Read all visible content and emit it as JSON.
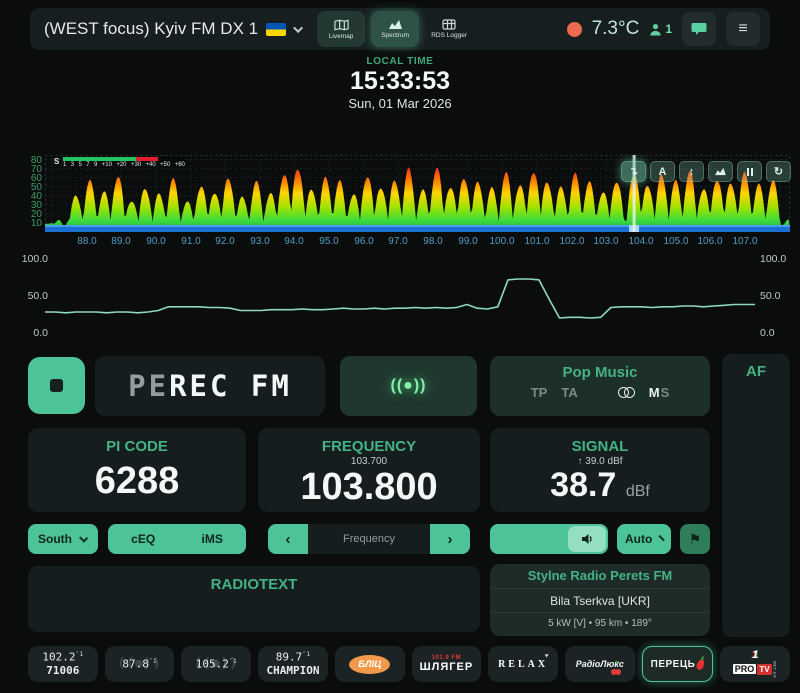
{
  "header": {
    "title": "(WEST focus) Kyiv FM DX 1",
    "nav": [
      {
        "label": "Livemap"
      },
      {
        "label": "Spectrum"
      },
      {
        "label": "RDS Logger"
      }
    ],
    "temperature": "7.3°C",
    "listeners": "1"
  },
  "clock": {
    "label": "LOCAL TIME",
    "time": "15:33:53",
    "date": "Sun, 01 Mar 2026"
  },
  "spectrum": {
    "y_ticks": [
      80,
      70,
      60,
      50,
      40,
      30,
      20,
      10
    ],
    "x_ticks": [
      "88.0",
      "89.0",
      "90.0",
      "91.0",
      "92.0",
      "93.0",
      "94.0",
      "95.0",
      "96.0",
      "97.0",
      "98.0",
      "99.0",
      "100.0",
      "101.0",
      "102.0",
      "103.0",
      "104.0",
      "105.0",
      "106.0",
      "107.0"
    ],
    "smeter": {
      "label": "S",
      "ticks": [
        "1",
        "3",
        "5",
        "7",
        "9",
        "+10",
        "+20",
        "+30",
        "+40",
        "+50",
        "+60"
      ]
    },
    "toolbar": {
      "snap": "↴",
      "auto": "A",
      "fit": "↕",
      "refresh": "↻"
    },
    "freq_range": [
      86.8,
      108.3
    ],
    "db_max": 85,
    "tuned_mhz": 103.8,
    "peaks": [
      [
        87.7,
        42
      ],
      [
        88.1,
        58
      ],
      [
        88.5,
        46
      ],
      [
        88.9,
        66
      ],
      [
        89.3,
        38
      ],
      [
        89.7,
        52
      ],
      [
        90.1,
        44
      ],
      [
        90.5,
        60
      ],
      [
        90.9,
        35
      ],
      [
        91.3,
        55
      ],
      [
        91.7,
        48
      ],
      [
        92.1,
        64
      ],
      [
        92.5,
        40
      ],
      [
        92.9,
        57
      ],
      [
        93.3,
        45
      ],
      [
        93.7,
        70
      ],
      [
        94.1,
        78
      ],
      [
        94.5,
        50
      ],
      [
        94.9,
        62
      ],
      [
        95.3,
        58
      ],
      [
        95.7,
        44
      ],
      [
        96.1,
        68
      ],
      [
        96.5,
        54
      ],
      [
        96.9,
        60
      ],
      [
        97.3,
        72
      ],
      [
        97.7,
        48
      ],
      [
        98.1,
        76
      ],
      [
        98.5,
        55
      ],
      [
        98.9,
        65
      ],
      [
        99.3,
        58
      ],
      [
        99.7,
        50
      ],
      [
        100.1,
        68
      ],
      [
        100.5,
        56
      ],
      [
        100.9,
        74
      ],
      [
        101.3,
        60
      ],
      [
        101.7,
        52
      ],
      [
        102.1,
        66
      ],
      [
        102.5,
        58
      ],
      [
        102.9,
        48
      ],
      [
        103.3,
        62
      ],
      [
        103.8,
        72
      ],
      [
        104.2,
        56
      ],
      [
        104.6,
        66
      ],
      [
        105.0,
        58
      ],
      [
        105.4,
        70
      ],
      [
        105.8,
        52
      ],
      [
        106.2,
        64
      ],
      [
        106.6,
        58
      ],
      [
        107.0,
        68
      ],
      [
        107.4,
        54
      ],
      [
        107.8,
        60
      ]
    ]
  },
  "history": {
    "y_ticks": [
      "100.0",
      "50.0",
      "0.0"
    ],
    "samples": [
      28,
      28,
      27,
      28,
      28,
      28,
      27,
      28,
      28,
      27,
      28,
      30,
      35,
      35,
      35,
      35,
      34,
      34,
      33,
      30,
      30,
      30,
      31,
      31,
      31,
      32,
      31,
      31,
      32,
      33,
      32,
      32,
      33,
      32,
      33,
      33,
      34,
      33,
      34,
      33,
      34,
      38,
      33,
      32,
      35,
      71,
      72,
      72,
      71,
      45,
      20,
      21,
      21,
      20,
      21,
      34,
      35,
      35,
      35,
      34,
      35,
      35,
      36,
      36,
      35,
      36,
      37,
      38,
      38,
      38
    ]
  },
  "receiver": {
    "ps_dim": "PE",
    "ps_bright": "REC FM",
    "pty": "Pop Music",
    "tp": "TP",
    "ta": "TA",
    "ms_m": "M",
    "ms_s": "S",
    "pi_label": "PI CODE",
    "pi": "6288",
    "freq_label": "FREQUENCY",
    "freq_prev": "103.700",
    "freq": "103.800",
    "signal_label": "SIGNAL",
    "signal_peak": "↑ 39.0 dBf",
    "signal": "38.7",
    "signal_unit": "dBf",
    "af_label": "AF",
    "radiotext_label": "RADIOTEXT",
    "station": {
      "name": "Stylne Radio Perets FM",
      "location": "Bila Tserkva [UKR]",
      "details": "5 kW [V] • 95 km • 189°"
    }
  },
  "controls": {
    "antenna": "South",
    "ceq": "cEQ",
    "ims": "iMS",
    "prev": "‹",
    "next": "›",
    "freq_placeholder": "Frequency",
    "auto": "Auto"
  },
  "icons": {
    "broadcast": "((●))",
    "flag": "⚑",
    "menu": "≡"
  },
  "presets": [
    {
      "freq": "102.2",
      "sup": "″1",
      "name": "71006"
    },
    {
      "freq": "87.8",
      "sup": "″1"
    },
    {
      "freq": "105.2",
      "sup": "″1"
    },
    {
      "freq": "89.7",
      "sup": "″1",
      "name": "CHAMPION"
    },
    {
      "logo": "БЛІЦ"
    },
    {
      "logo_top": "101.9 FM",
      "logo": "ШЛЯГЕР"
    },
    {
      "logo": "RELAX"
    },
    {
      "logo": "РадіоЛюкс"
    },
    {
      "logo": "ПЕРЕЦЬ",
      "active": true
    },
    {
      "logo_pro": "PRO",
      "logo_tv": "TV",
      "logo_one": "1",
      "logo_net": "NET.UA"
    }
  ]
}
